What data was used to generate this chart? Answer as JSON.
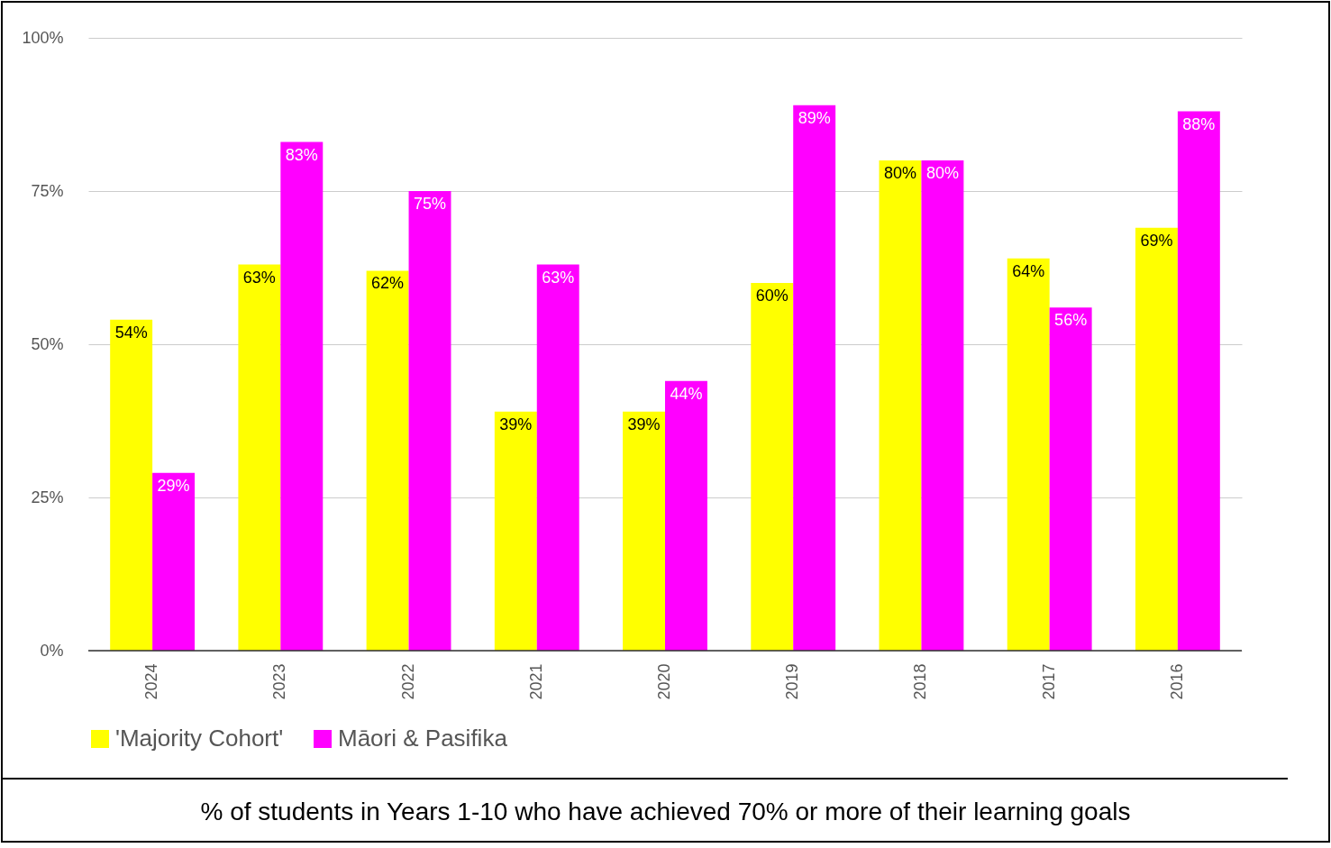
{
  "chart_data": {
    "type": "bar",
    "categories": [
      "2024",
      "2023",
      "2022",
      "2021",
      "2020",
      "2019",
      "2018",
      "2017",
      "2016"
    ],
    "series": [
      {
        "name": "'Majority Cohort'",
        "color": "#ffff00",
        "values": [
          54,
          63,
          62,
          39,
          39,
          60,
          80,
          64,
          69
        ],
        "value_labels": [
          "54%",
          "63%",
          "62%",
          "39%",
          "39%",
          "60%",
          "80%",
          "64%",
          "69%"
        ]
      },
      {
        "name": "Māori & Pasifika",
        "color": "#ff00ff",
        "values": [
          29,
          83,
          75,
          63,
          44,
          89,
          80,
          56,
          88
        ],
        "value_labels": [
          "29%",
          "83%",
          "75%",
          "63%",
          "44%",
          "89%",
          "80%",
          "56%",
          "88%"
        ]
      }
    ],
    "ylim": [
      0,
      100
    ],
    "yticks": [
      {
        "value": 0,
        "label": "0%"
      },
      {
        "value": 25,
        "label": "25%"
      },
      {
        "value": 50,
        "label": "50%"
      },
      {
        "value": 75,
        "label": "75%"
      },
      {
        "value": 100,
        "label": "100%"
      }
    ],
    "grid": "y",
    "legend": "bottom",
    "annotations": [
      "% of students in Years 1-10 who have achieved 70% or more of their learning goals"
    ]
  }
}
